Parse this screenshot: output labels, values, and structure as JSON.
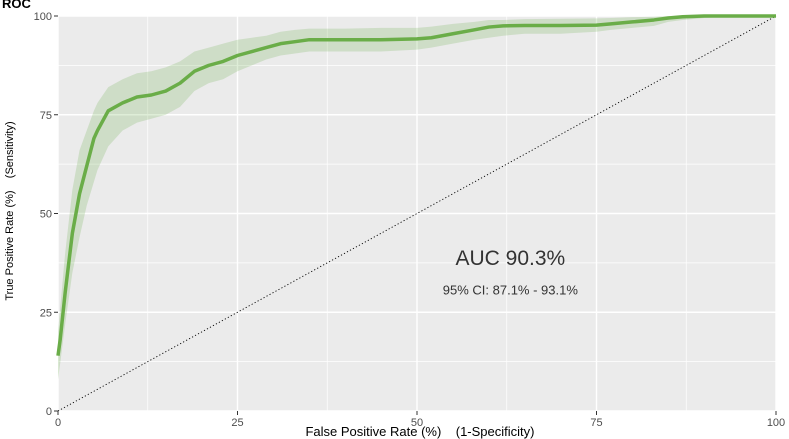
{
  "chart_data": {
    "type": "line",
    "title": "ROC",
    "xlabel": "False Positive Rate (%)    (1-Specificity)",
    "ylabel": "True Positive Rate (%)    (Sensitivity)",
    "xlim": [
      0,
      100
    ],
    "ylim": [
      0,
      100
    ],
    "xticks": [
      0,
      25,
      50,
      75,
      100
    ],
    "yticks": [
      0,
      25,
      50,
      75,
      100
    ],
    "grid": true,
    "background": "#ebebeb",
    "series": [
      {
        "color": "#6aad48",
        "x": [
          0,
          0.3,
          1,
          2,
          3,
          4,
          5,
          5.5,
          7,
          9,
          11,
          13,
          15,
          17,
          19,
          21,
          23,
          25,
          27,
          29,
          31,
          33,
          35,
          40,
          45,
          50,
          52,
          55,
          58,
          60,
          62,
          65,
          70,
          75,
          77,
          80,
          83,
          85,
          87,
          90,
          95,
          100
        ],
        "y": [
          14,
          18,
          30,
          45,
          55,
          62,
          69,
          71,
          76,
          78,
          79.5,
          80,
          81,
          83,
          86,
          87.5,
          88.5,
          90,
          91,
          92,
          93,
          93.5,
          94,
          94,
          94,
          94.2,
          94.5,
          95.5,
          96.5,
          97.2,
          97.5,
          97.6,
          97.6,
          97.7,
          98,
          98.5,
          99,
          99.5,
          99.8,
          100,
          100,
          100
        ],
        "ci_lower": [
          8,
          12,
          22,
          35,
          44,
          52,
          58,
          61,
          67,
          71,
          73,
          74,
          75,
          77,
          81,
          83,
          84,
          86,
          87.5,
          89,
          90,
          90.5,
          91,
          91,
          91,
          91.5,
          92,
          93,
          94,
          94.5,
          95,
          95.5,
          95.5,
          96,
          96.5,
          97,
          97.5,
          98.5,
          99,
          99.5,
          100,
          100
        ],
        "ci_upper": [
          20,
          26,
          40,
          56,
          66,
          71,
          76,
          78,
          82,
          84,
          85.5,
          86,
          87,
          88.5,
          91,
          92,
          93,
          94,
          94.5,
          95,
          96,
          96.5,
          96.8,
          96.8,
          97,
          97,
          97.3,
          98,
          98.5,
          99,
          99,
          99.2,
          99.3,
          99.4,
          99.5,
          99.7,
          99.8,
          100,
          100,
          100,
          100,
          100
        ]
      }
    ],
    "reference_line": {
      "x": [
        0,
        100
      ],
      "y": [
        0,
        100
      ],
      "style": "dotted"
    },
    "annotations": [
      {
        "text": "AUC 90.3%",
        "x": 63,
        "y": 37
      },
      {
        "text": "95% CI: 87.1% - 93.1%",
        "x": 63,
        "y": 29.5
      }
    ]
  }
}
